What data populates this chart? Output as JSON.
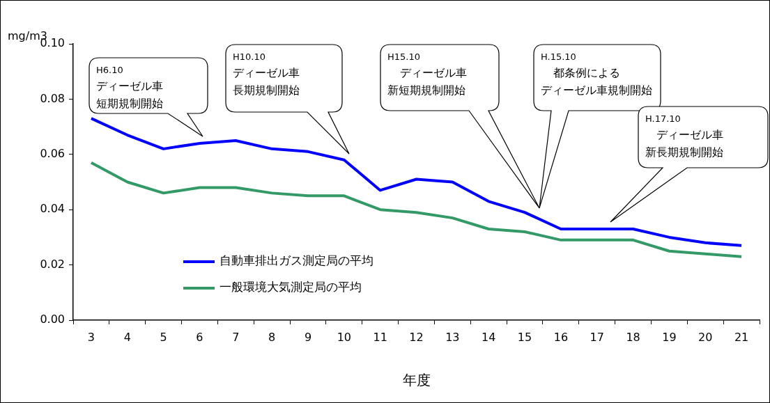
{
  "chart_data": {
    "type": "line",
    "xlabel": "年度",
    "ylabel": "mg/m3",
    "categories": [
      "3",
      "4",
      "5",
      "6",
      "7",
      "8",
      "9",
      "10",
      "11",
      "12",
      "13",
      "14",
      "15",
      "16",
      "17",
      "18",
      "19",
      "20",
      "21"
    ],
    "series": [
      {
        "name": "自動車排出ガス測定局の平均",
        "color": "#0000ff",
        "values": [
          0.073,
          0.067,
          0.062,
          0.064,
          0.065,
          0.062,
          0.061,
          0.058,
          0.047,
          0.051,
          0.05,
          0.043,
          0.039,
          0.033,
          0.033,
          0.033,
          0.03,
          0.028,
          0.027
        ]
      },
      {
        "name": "一般環境大気測定局の平均",
        "color": "#339966",
        "values": [
          0.057,
          0.05,
          0.046,
          0.048,
          0.048,
          0.046,
          0.045,
          0.045,
          0.04,
          0.039,
          0.037,
          0.033,
          0.032,
          0.029,
          0.029,
          0.029,
          0.025,
          0.024,
          0.023
        ]
      }
    ],
    "ylim": [
      0,
      0.1
    ],
    "yticks": [
      {
        "value": 0,
        "label": "0.00"
      },
      {
        "value": 0.02,
        "label": "0.02"
      },
      {
        "value": 0.04,
        "label": "0.04"
      },
      {
        "value": 0.06,
        "label": "0.06"
      },
      {
        "value": 0.08,
        "label": "0.08"
      },
      {
        "value": 0.1,
        "label": "0.10"
      }
    ],
    "grid": false,
    "legend": "bottom left",
    "marker": "none",
    "line_style": "solid",
    "annotations": [
      "H6.10",
      "ディーゼル車短期規制開始",
      "H10.10",
      "ディーゼル車長期規制開始",
      "H15.10",
      "ディーゼル車新短期規制開始",
      "H.15.10",
      "都条例によるディーゼル車規制開始",
      "H.17.10",
      "ディーゼル車新長期規制開始"
    ]
  }
}
